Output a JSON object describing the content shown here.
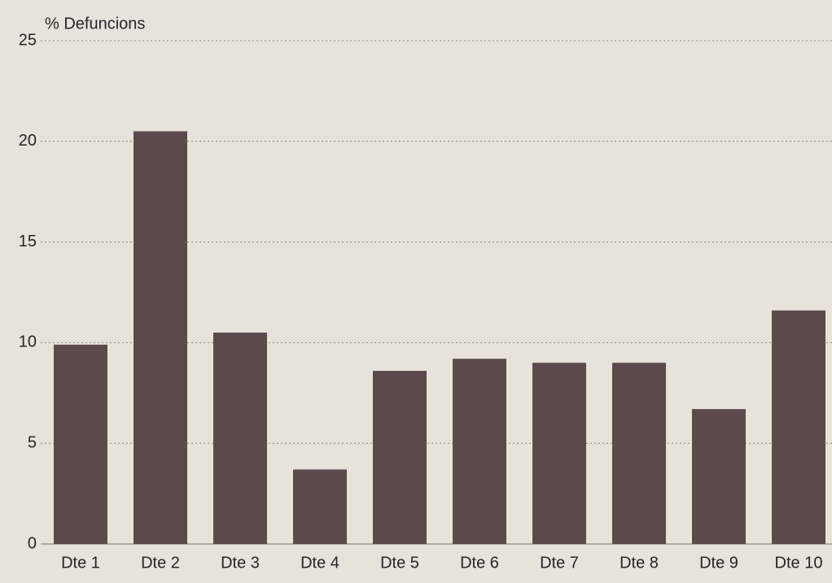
{
  "chart_data": {
    "type": "bar",
    "y_label": "% Defuncions",
    "categories": [
      "Dte 1",
      "Dte 2",
      "Dte 3",
      "Dte 4",
      "Dte 5",
      "Dte 6",
      "Dte 7",
      "Dte 8",
      "Dte 9",
      "Dte 10"
    ],
    "values": [
      9.9,
      20.5,
      10.5,
      3.7,
      8.6,
      9.2,
      9.0,
      9.0,
      6.7,
      11.6
    ],
    "color": "#5b4b4c",
    "ylim": [
      0,
      25
    ],
    "yticks": [
      0,
      5,
      10,
      15,
      20,
      25
    ],
    "grid": true
  }
}
